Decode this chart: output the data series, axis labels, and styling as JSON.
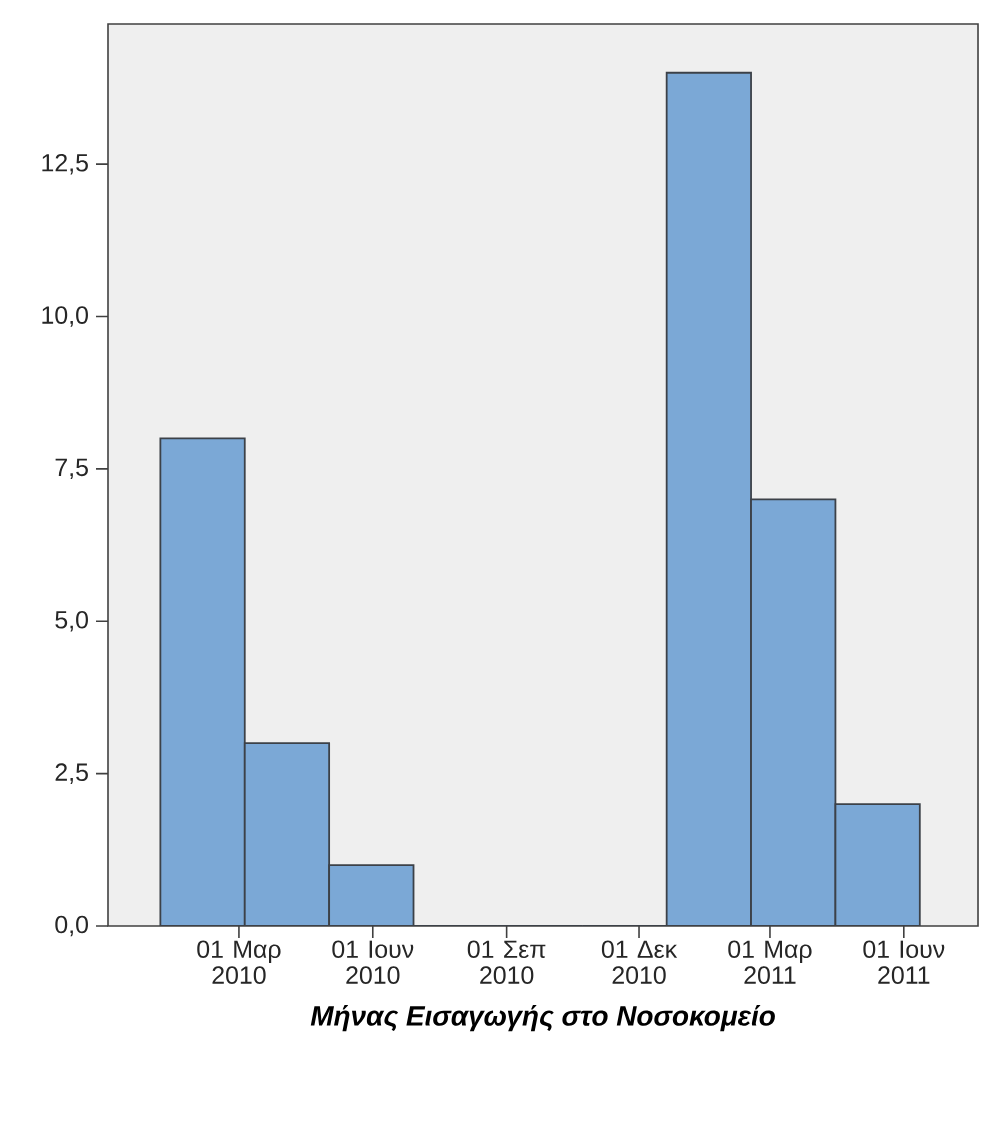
{
  "chart_data": {
    "type": "histogram",
    "xlabel": "Μήνας Εισαγωγής στο Νοσοκομείο",
    "bins": [
      "2010-01-06",
      "2010-03-05",
      "2010-05-02",
      "2010-06-29",
      "2010-08-26",
      "2010-10-23",
      "2010-12-20",
      "2011-02-16",
      "2011-04-15",
      "2011-06-12"
    ],
    "values": [
      8,
      3,
      1,
      0,
      0,
      0,
      14,
      7,
      2
    ],
    "color": "#7ba8d6",
    "xlim": [
      "2009-12-01",
      "2011-07-22"
    ],
    "xticks": [
      {
        "value": "2010-03-01",
        "label": "01 Μαρ 2010"
      },
      {
        "value": "2010-06-01",
        "label": "01 Ιουν 2010"
      },
      {
        "value": "2010-09-01",
        "label": "01 Σεπ 2010"
      },
      {
        "value": "2010-12-01",
        "label": "01 Δεκ 2010"
      },
      {
        "value": "2011-03-01",
        "label": "01 Μαρ 2011"
      },
      {
        "value": "2011-06-01",
        "label": "01 Ιουν 2011"
      }
    ],
    "ylim": [
      0,
      14.8
    ],
    "yticks": [
      {
        "value": 0,
        "label": "0,0"
      },
      {
        "value": 2.5,
        "label": "2,5"
      },
      {
        "value": 5,
        "label": "5,0"
      },
      {
        "value": 7.5,
        "label": "7,5"
      },
      {
        "value": 10,
        "label": "10,0"
      },
      {
        "value": 12.5,
        "label": "12,5"
      }
    ],
    "grid": false
  }
}
